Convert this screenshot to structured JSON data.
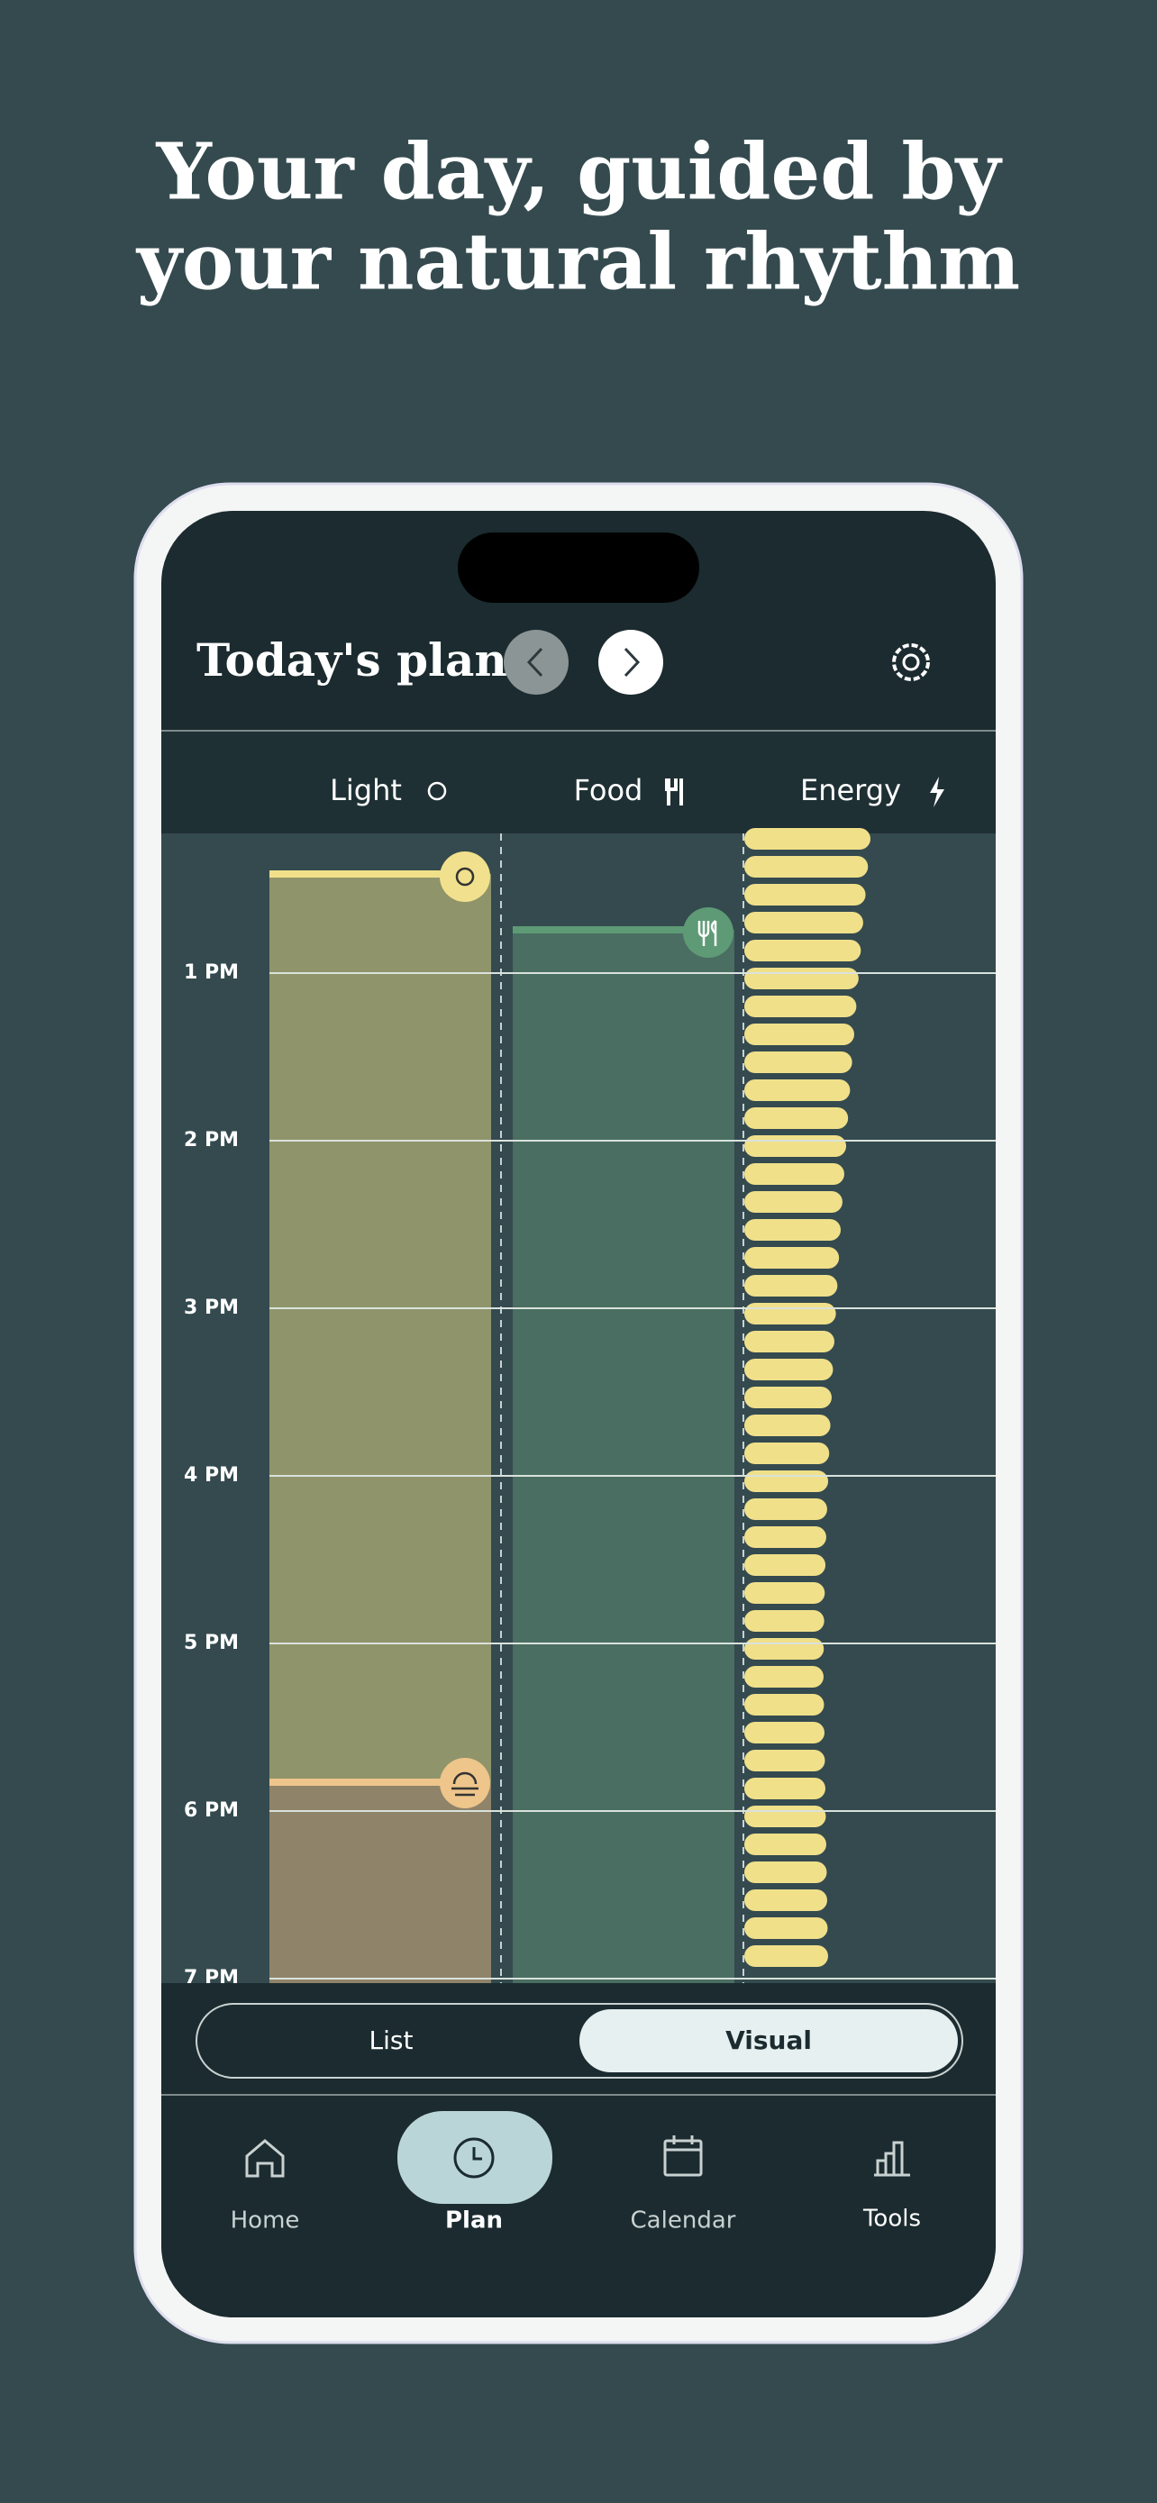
{
  "headline": {
    "line1": "Your day, guided by",
    "line2": "your natural rhythm"
  },
  "screen": {
    "title": "Today's plan",
    "columns": [
      "Light",
      "Food",
      "Energy"
    ],
    "hours": [
      "1 PM",
      "2 PM",
      "3 PM",
      "4 PM",
      "5 PM",
      "6 PM",
      "7 PM"
    ],
    "toggle": [
      "List",
      "Visual"
    ],
    "nav": [
      "Home",
      "Plan",
      "Calendar",
      "Tools"
    ]
  }
}
